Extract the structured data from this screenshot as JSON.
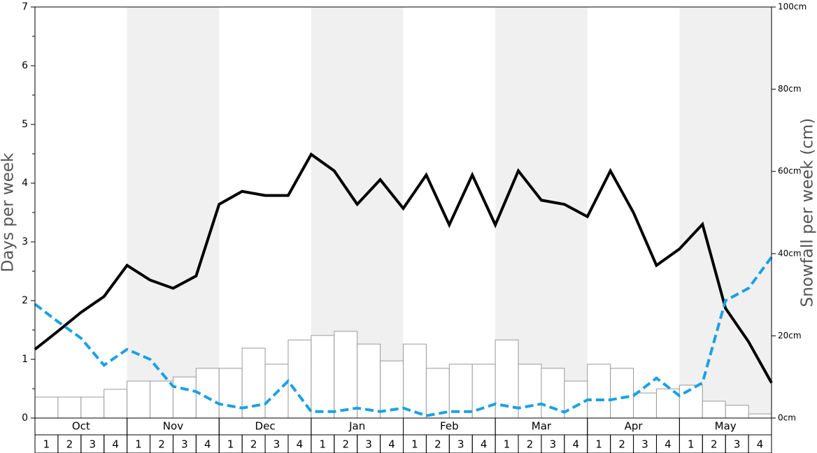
{
  "chart_data": {
    "type": "bar_line",
    "y_label": "Days per week",
    "y2_label": "Snowfall per week (cm)",
    "months": [
      "Oct",
      "Nov",
      "Dec",
      "Jan",
      "Feb",
      "Mar",
      "Apr",
      "May"
    ],
    "week_labels": [
      "1",
      "2",
      "3",
      "4"
    ],
    "shaded_months": [
      false,
      true,
      false,
      true,
      false,
      true,
      false,
      true
    ],
    "ylim": [
      0,
      7
    ],
    "yticks": [
      0,
      1,
      2,
      3,
      4,
      5,
      6,
      7
    ],
    "y2lim": [
      0,
      100
    ],
    "y2ticks": [
      {
        "value": 0,
        "label": "0cm"
      },
      {
        "value": 20,
        "label": "20cm"
      },
      {
        "value": 40,
        "label": "40cm"
      },
      {
        "value": 60,
        "label": "60cm"
      },
      {
        "value": 80,
        "label": "80cm"
      },
      {
        "value": 100,
        "label": "100cm"
      }
    ],
    "series": [
      {
        "type": "bar",
        "axis": "y2",
        "color": "#ffffff",
        "values": [
          5.1,
          5.1,
          5.1,
          7.0,
          9.0,
          9.0,
          10.0,
          12.1,
          12.1,
          17.0,
          13.1,
          19.0,
          20.1,
          21.1,
          18.0,
          13.9,
          18.0,
          12.1,
          13.1,
          13.1,
          19.0,
          13.1,
          12.1,
          9.0,
          13.1,
          12.1,
          6.1,
          7.1,
          8.0,
          4.1,
          3.1,
          1.0
        ]
      },
      {
        "type": "line",
        "axis": "y",
        "color": "#000000",
        "dashed": false,
        "values": [
          1.17,
          1.48,
          1.8,
          2.07,
          2.6,
          2.35,
          2.21,
          2.42,
          3.64,
          3.86,
          3.79,
          3.79,
          4.49,
          4.21,
          3.64,
          4.06,
          3.57,
          4.14,
          3.29,
          4.14,
          3.29,
          4.21,
          3.71,
          3.64,
          3.43,
          4.21,
          3.5,
          2.6,
          2.88,
          3.3,
          1.87,
          1.3,
          0.6
        ]
      },
      {
        "type": "line",
        "axis": "y",
        "color": "#1ba1e2",
        "dashed": true,
        "values": [
          1.94,
          1.64,
          1.36,
          0.9,
          1.17,
          1.0,
          0.54,
          0.45,
          0.24,
          0.17,
          0.24,
          0.63,
          0.11,
          0.11,
          0.17,
          0.11,
          0.17,
          0.04,
          0.11,
          0.11,
          0.24,
          0.17,
          0.24,
          0.1,
          0.31,
          0.31,
          0.38,
          0.68,
          0.38,
          0.6,
          2.0,
          2.21,
          2.74
        ]
      }
    ]
  }
}
